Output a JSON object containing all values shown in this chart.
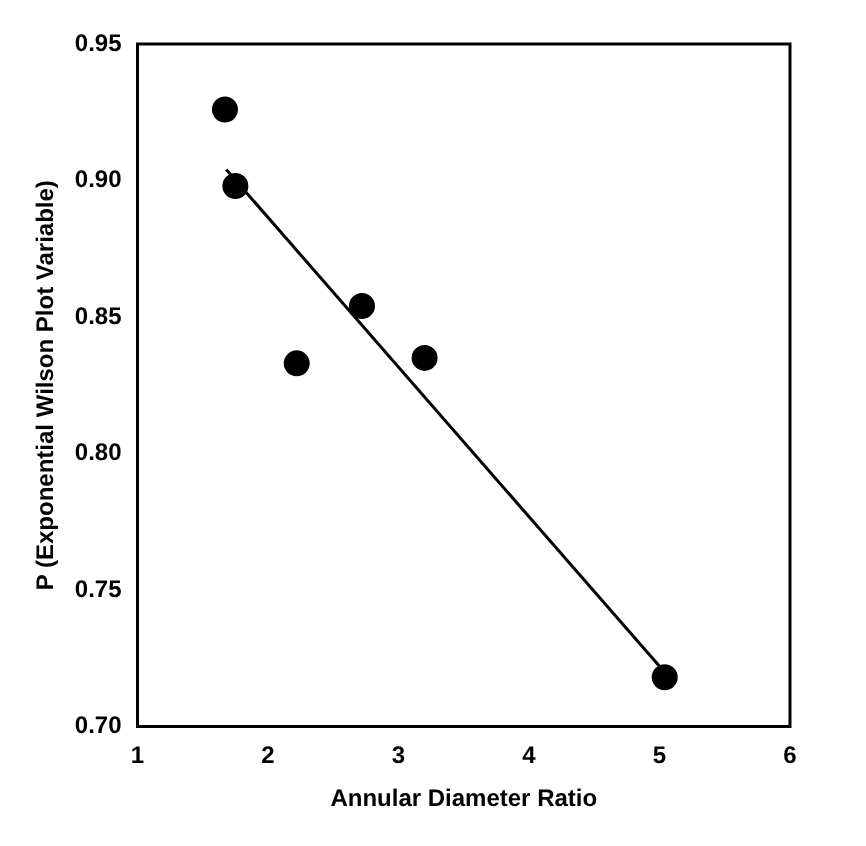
{
  "chart_data": {
    "type": "scatter",
    "xlabel": "Annular Diameter Ratio",
    "ylabel": "P (Exponential Wilson Plot Variable)",
    "series": [
      {
        "color": "#000000",
        "marker": "circle",
        "x": [
          1.67,
          1.75,
          2.22,
          2.72,
          3.2,
          5.04
        ],
        "values": [
          0.926,
          0.898,
          0.833,
          0.854,
          0.835,
          0.718
        ]
      },
      {
        "type": "line",
        "color": "#000000",
        "marker": "none",
        "line_style": "solid",
        "x": [
          1.68,
          5.0
        ],
        "values": [
          0.904,
          0.722
        ]
      }
    ],
    "xlim": [
      1,
      6
    ],
    "xticks": [
      1,
      2,
      3,
      4,
      5,
      6
    ],
    "ylim": [
      0.7,
      0.95
    ],
    "yticks": [
      {
        "value": 0.7,
        "label": "0.70"
      },
      {
        "value": 0.75,
        "label": "0.75"
      },
      {
        "value": 0.8,
        "label": "0.80"
      },
      {
        "value": 0.85,
        "label": "0.85"
      },
      {
        "value": 0.9,
        "label": "0.90"
      },
      {
        "value": 0.95,
        "label": "0.95"
      }
    ],
    "grid": false,
    "legend": false
  }
}
